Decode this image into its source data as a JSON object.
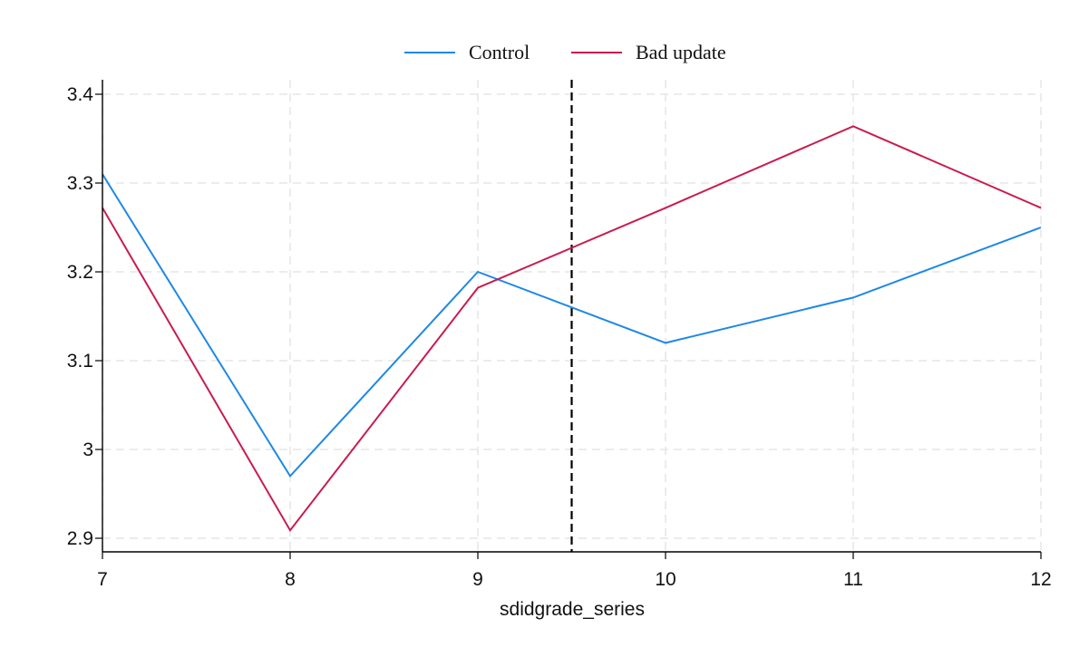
{
  "chart_data": {
    "type": "line",
    "x": [
      7,
      8,
      9,
      10,
      11,
      12
    ],
    "xlabel": "sdidgrade_series",
    "ylabel": "",
    "xlim": [
      7,
      12
    ],
    "ylim": [
      2.9,
      3.4
    ],
    "xticks": [
      7,
      8,
      9,
      10,
      11,
      12
    ],
    "yticks": [
      2.9,
      3,
      3.1,
      3.2,
      3.3,
      3.4
    ],
    "ytick_labels": [
      "2.9",
      "3",
      "3.1",
      "3.2",
      "3.3",
      "3.4"
    ],
    "grid": true,
    "legend_position": "top",
    "vline": {
      "x": 9.5,
      "style": "dashed",
      "color": "#000000"
    },
    "series": [
      {
        "name": "Control",
        "color": "#1e88e5",
        "values": [
          3.31,
          2.97,
          3.2,
          3.12,
          3.171,
          3.25
        ]
      },
      {
        "name": "Bad update",
        "color": "#c81c4f",
        "values": [
          3.272,
          2.909,
          3.182,
          3.272,
          3.364,
          3.272
        ]
      }
    ]
  }
}
